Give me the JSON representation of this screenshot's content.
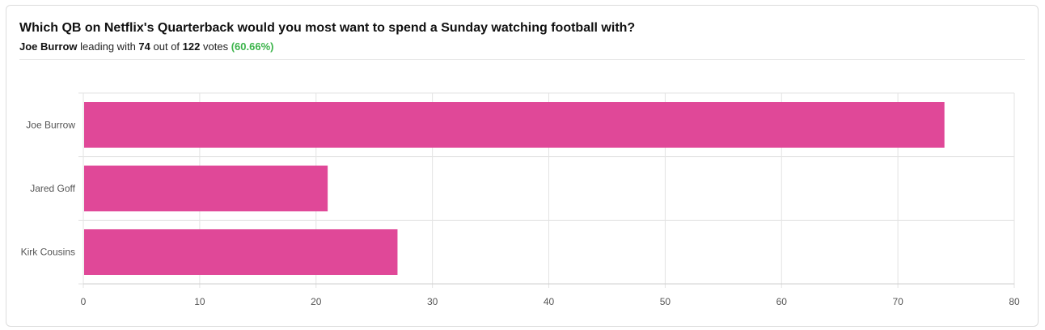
{
  "poll": {
    "question": "Which QB on Netflix's Quarterback would you most want to spend a Sunday watching football with?",
    "leader_name": "Joe Burrow",
    "leading_text": "leading with",
    "leader_votes": "74",
    "out_of_text": "out of",
    "total_votes": "122",
    "votes_text": "votes",
    "leader_percent": "(60.66%)"
  },
  "colors": {
    "bar": "#e04898",
    "percent": "#3cb44b",
    "grid": "#e3e3e3"
  },
  "chart_data": {
    "type": "bar",
    "orientation": "horizontal",
    "categories": [
      "Joe Burrow",
      "Jared Goff",
      "Kirk Cousins"
    ],
    "values": [
      74,
      21,
      27
    ],
    "xlim": [
      0,
      80
    ],
    "xticks": [
      0,
      10,
      20,
      30,
      40,
      50,
      60,
      70,
      80
    ],
    "grid": true
  }
}
